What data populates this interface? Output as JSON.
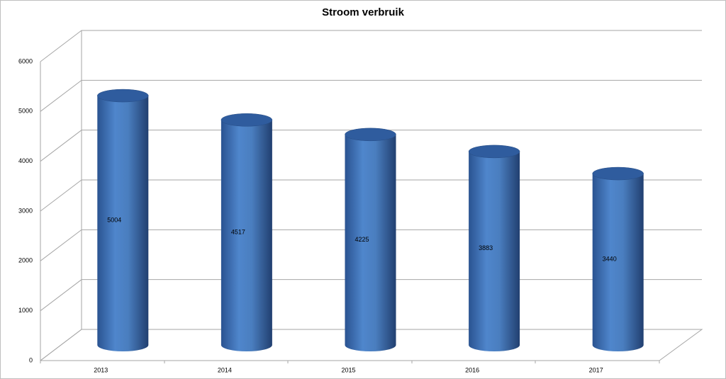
{
  "chart_data": {
    "type": "bar",
    "title": "Stroom verbruik",
    "categories": [
      "2013",
      "2014",
      "2015",
      "2016",
      "2017"
    ],
    "values": [
      5004,
      4517,
      4225,
      3883,
      3440
    ],
    "color": "#4a7ebf",
    "ylim": [
      0,
      6000
    ],
    "yticks": [
      0,
      1000,
      2000,
      3000,
      4000,
      5000,
      6000
    ],
    "grid": true
  }
}
